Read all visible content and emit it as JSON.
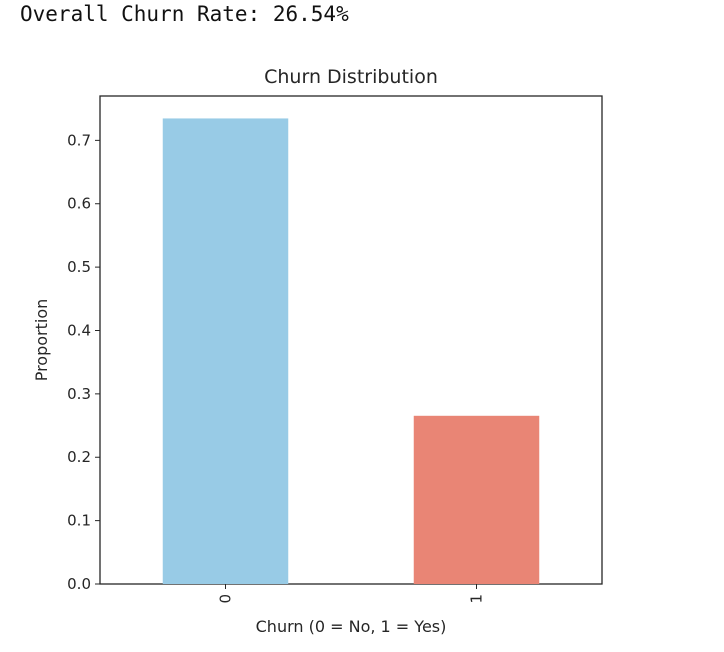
{
  "output": {
    "text": "Overall Churn Rate: 26.54%"
  },
  "chart_data": {
    "type": "bar",
    "title": "Churn Distribution",
    "xlabel": "Churn (0 = No, 1 = Yes)",
    "ylabel": "Proportion",
    "categories": [
      "0",
      "1"
    ],
    "values": [
      0.7346,
      0.2654
    ],
    "colors": [
      "#98cbe6",
      "#e98575"
    ],
    "ylim": [
      0,
      0.77
    ],
    "yticks": [
      0.0,
      0.1,
      0.2,
      0.3,
      0.4,
      0.5,
      0.6,
      0.7
    ],
    "ytick_labels": [
      "0.0",
      "0.1",
      "0.2",
      "0.3",
      "0.4",
      "0.5",
      "0.6",
      "0.7"
    ],
    "grid": false,
    "legend": "none"
  }
}
